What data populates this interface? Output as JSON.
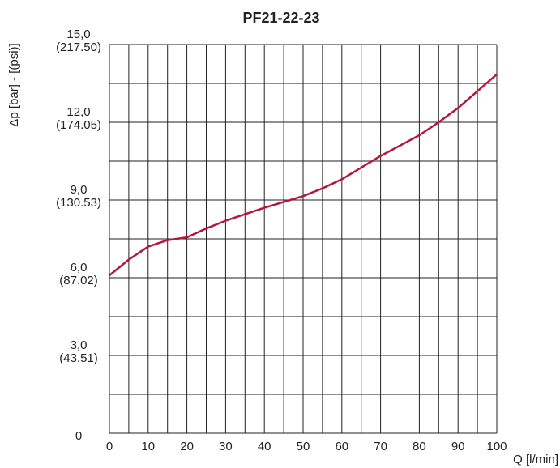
{
  "chart_data": {
    "type": "line",
    "title": "PF21-22-23",
    "ylabel": "Δp [bar] - [(psi)]",
    "xlabel": "Q [l/min]",
    "x": [
      0,
      5,
      10,
      15,
      20,
      25,
      30,
      40,
      50,
      55,
      60,
      70,
      80,
      85,
      90,
      100
    ],
    "series": [
      {
        "name": "PF21-22-23",
        "color": "#b5173a",
        "values": [
          6.09,
          6.7,
          7.2,
          7.45,
          7.56,
          7.9,
          8.2,
          8.7,
          9.15,
          9.45,
          9.8,
          10.7,
          11.5,
          12.0,
          12.55,
          13.85
        ]
      }
    ],
    "xlim": [
      0,
      100
    ],
    "xticks": [
      0,
      10,
      20,
      30,
      40,
      50,
      60,
      70,
      80,
      90,
      100
    ],
    "xminorticks": [
      0,
      5,
      10,
      15,
      20,
      25,
      30,
      35,
      40,
      45,
      50,
      55,
      60,
      65,
      70,
      75,
      80,
      85,
      90,
      95,
      100
    ],
    "ylim": [
      0,
      15
    ],
    "yticks": [
      0,
      {
        "value": 3,
        "label": "3,0"
      },
      {
        "value": 6,
        "label": "6,0"
      },
      {
        "value": 9,
        "label": "9,0"
      },
      {
        "value": 12,
        "label": "12,0"
      },
      {
        "value": 15,
        "label": "15,0"
      }
    ],
    "yminorticks": [
      0,
      1.5,
      3,
      4.5,
      6,
      7.5,
      9,
      10.5,
      12,
      13.5,
      15
    ],
    "y2lim": [
      0,
      217.56
    ],
    "y2ticks": [
      {
        "value": 43.51,
        "label": "(43.51)"
      },
      {
        "value": 87.02,
        "label": "(87.02)"
      },
      {
        "value": 130.53,
        "label": "(130.53)"
      },
      {
        "value": 174.05,
        "label": "(174.05)"
      },
      {
        "value": 217.5,
        "label": "(217.50)"
      }
    ],
    "grid": true
  }
}
